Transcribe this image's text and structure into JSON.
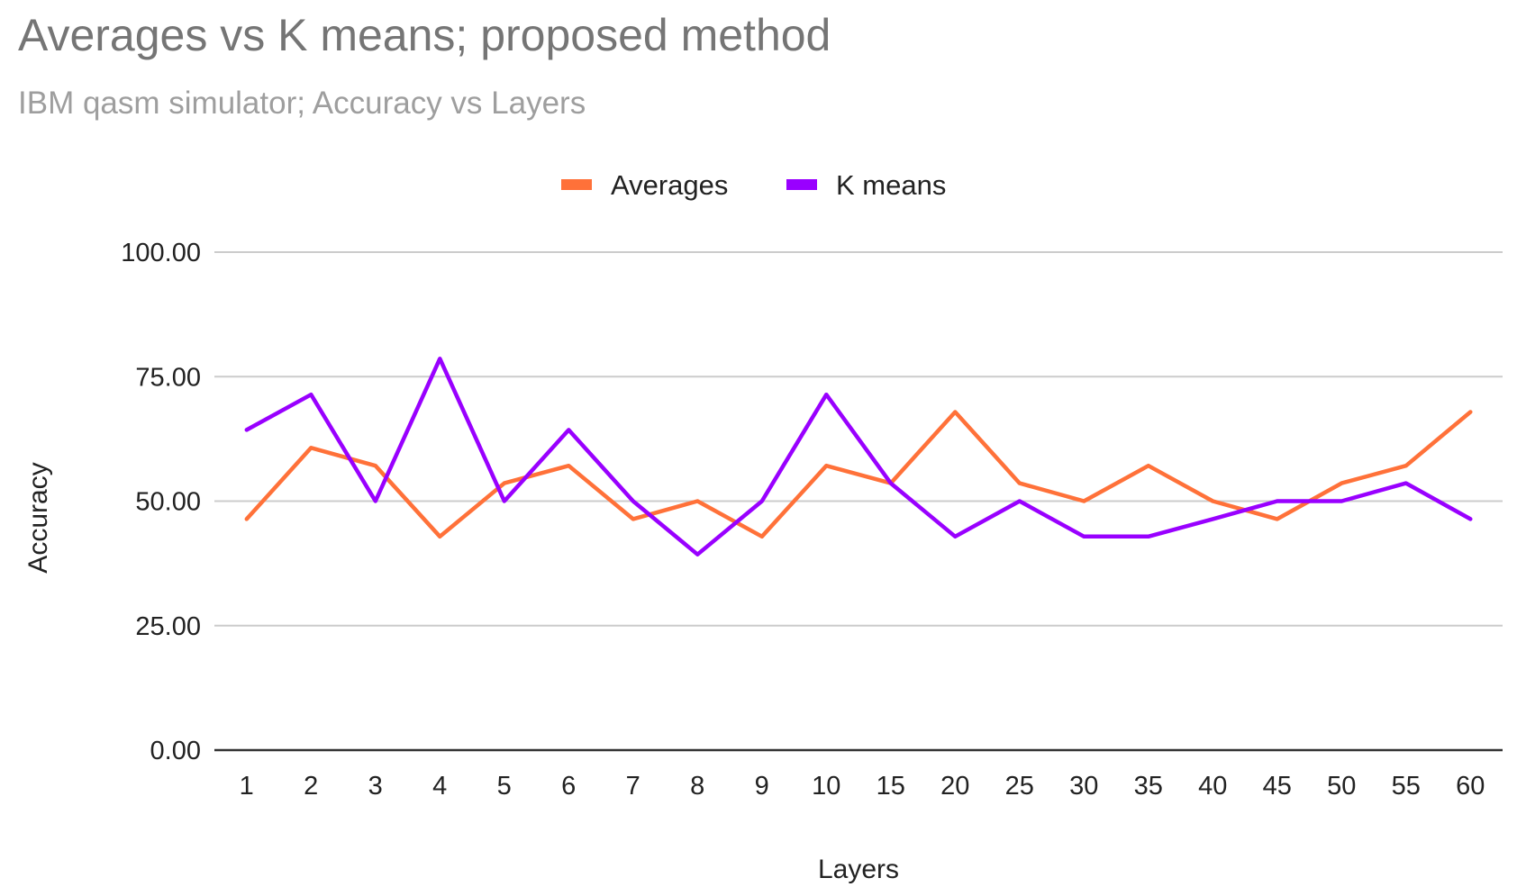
{
  "chart_data": {
    "type": "line",
    "title": "Averages vs K means; proposed method",
    "subtitle": "IBM qasm simulator; Accuracy vs Layers",
    "xlabel": "Layers",
    "ylabel": "Accuracy",
    "categories": [
      "1",
      "2",
      "3",
      "4",
      "5",
      "6",
      "7",
      "8",
      "9",
      "10",
      "15",
      "20",
      "25",
      "30",
      "35",
      "40",
      "45",
      "50",
      "55",
      "60"
    ],
    "series": [
      {
        "name": "Averages",
        "color": "#ff7139",
        "values": [
          46.4,
          60.7,
          57.1,
          42.9,
          53.6,
          57.1,
          46.4,
          50.0,
          42.9,
          57.1,
          53.6,
          67.9,
          53.6,
          50.0,
          57.1,
          50.0,
          46.4,
          53.6,
          57.1,
          67.9
        ]
      },
      {
        "name": "K means",
        "color": "#9900ff",
        "values": [
          64.3,
          71.4,
          50.0,
          78.6,
          50.0,
          64.3,
          50.0,
          39.3,
          50.0,
          71.4,
          53.6,
          42.9,
          50.0,
          42.9,
          42.9,
          46.4,
          50.0,
          50.0,
          53.6,
          46.4
        ]
      }
    ],
    "ylim": [
      0,
      100
    ],
    "yticks": [
      "0.00",
      "25.00",
      "50.00",
      "75.00",
      "100.00"
    ],
    "grid": true,
    "legend_position": "top"
  }
}
